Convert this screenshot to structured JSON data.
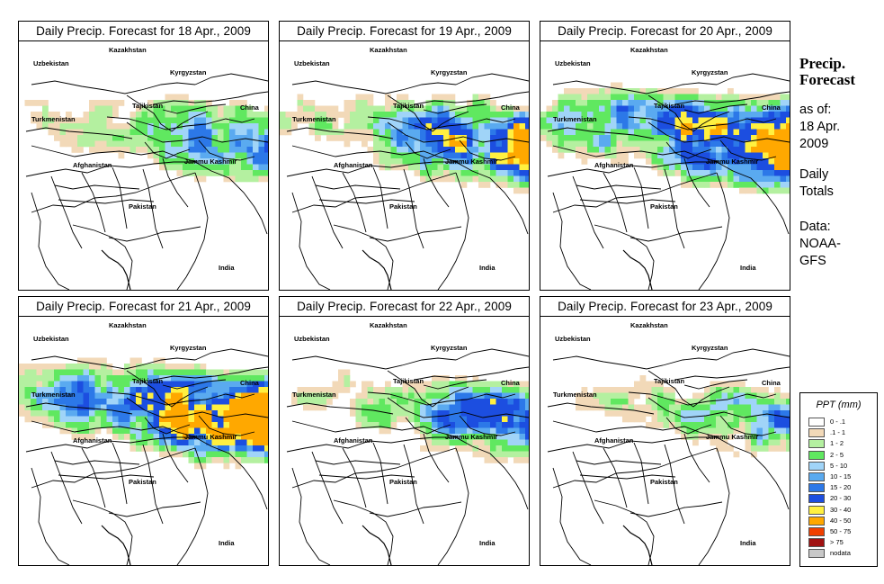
{
  "panels": [
    {
      "title": "Daily Precip. Forecast for  18 Apr., 2009"
    },
    {
      "title": "Daily Precip. Forecast for  19 Apr., 2009"
    },
    {
      "title": "Daily Precip. Forecast for  20 Apr., 2009"
    },
    {
      "title": "Daily Precip. Forecast for  21 Apr., 2009"
    },
    {
      "title": "Daily Precip. Forecast for  22 Apr., 2009"
    },
    {
      "title": "Daily Precip. Forecast for  23 Apr., 2009"
    }
  ],
  "map_labels": {
    "kazakhstan": "Kazakhstan",
    "uzbekistan": "Uzbekistan",
    "kyrgyzstan": "Kyrgyzstan",
    "tajikistan": "Tajikistan",
    "china": "China",
    "turkmenistan": "Turkmenistan",
    "afghanistan": "Afghanistan",
    "jammu_kashmir": "Jammu Kashmir",
    "pakistan": "Pakistan",
    "india": "India"
  },
  "sidebar": {
    "title_line1": "Precip.",
    "title_line2": "Forecast",
    "asof_line1": "as of:",
    "asof_line2": "18 Apr.",
    "asof_line3": "2009",
    "daily_line1": "Daily",
    "daily_line2": "Totals",
    "data_line1": "Data:",
    "data_line2": "NOAA-",
    "data_line3": "GFS"
  },
  "legend": {
    "title": "PPT (mm)",
    "items": [
      {
        "label": "0 - .1",
        "color": "#ffffff"
      },
      {
        "label": ".1 - 1",
        "color": "#f2d9b8"
      },
      {
        "label": "1 - 2",
        "color": "#b4f0a0"
      },
      {
        "label": "2 - 5",
        "color": "#60e860"
      },
      {
        "label": "5 - 10",
        "color": "#a0d4f8"
      },
      {
        "label": "10 - 15",
        "color": "#5aaaf0"
      },
      {
        "label": "15 - 20",
        "color": "#2c78e8"
      },
      {
        "label": "20 - 30",
        "color": "#1c4ee0"
      },
      {
        "label": "30 - 40",
        "color": "#fff040"
      },
      {
        "label": "40 - 50",
        "color": "#ffa800"
      },
      {
        "label": "50 - 75",
        "color": "#f04000"
      },
      {
        "label": "> 75",
        "color": "#a01010"
      },
      {
        "label": "nodata",
        "color": "#c8c8c8"
      }
    ]
  },
  "panel_intensity": [
    0.9,
    1.15,
    1.45,
    1.55,
    0.95,
    0.75
  ]
}
